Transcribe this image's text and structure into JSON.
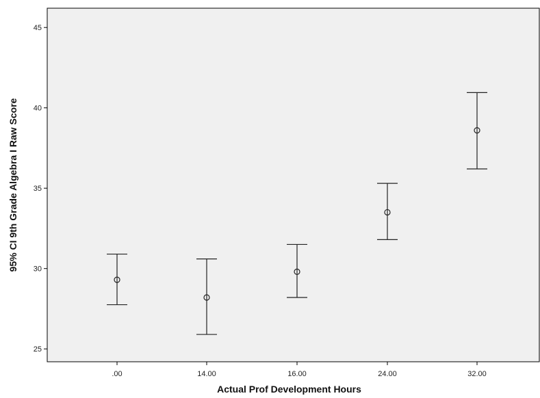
{
  "chart_data": {
    "type": "scatter",
    "title": "",
    "xlabel": "Actual Prof  Development Hours",
    "ylabel": "95% CI 9th Grade Algebra I Raw Score",
    "categories": [
      ".00",
      "14.00",
      "16.00",
      "24.00",
      "32.00"
    ],
    "series": [
      {
        "mean": [
          29.3,
          28.2,
          29.8,
          33.5,
          38.6
        ],
        "ci_lower": [
          27.75,
          25.9,
          28.2,
          31.8,
          36.2
        ],
        "ci_upper": [
          30.9,
          30.6,
          31.5,
          35.3,
          40.95
        ]
      }
    ],
    "yticks": [
      25,
      30,
      35,
      40,
      45
    ],
    "ylim": [
      24.2,
      46.2
    ],
    "grid": false,
    "legend": "none",
    "colors": {
      "plot_background": "#f0f0f0",
      "marks": "#222222",
      "axis": "#000000"
    }
  }
}
